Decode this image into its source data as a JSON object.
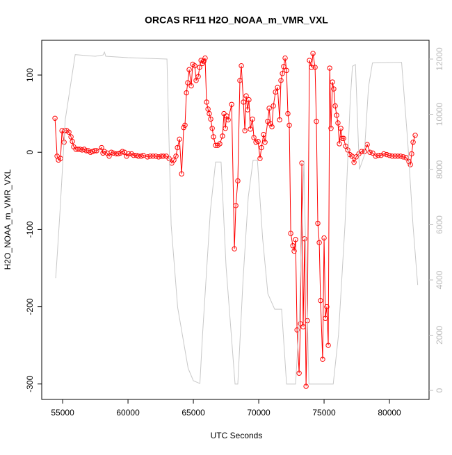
{
  "chart_data": {
    "type": "line",
    "title": "ORCAS RF11 H2O_NOAA_m_VMR_VXL",
    "xlabel": "UTC Seconds",
    "ylabel": "H2O_NOAA_m_VMR_VXL",
    "xlim": [
      53400,
      83030
    ],
    "ylim": [
      -320,
      145
    ],
    "y2lim": [
      -327,
      12680
    ],
    "xticks": [
      55000,
      60000,
      65000,
      70000,
      75000,
      80000
    ],
    "yticks": [
      -300,
      -200,
      -100,
      0,
      100
    ],
    "y2ticks": [
      0,
      2000,
      4000,
      6000,
      8000,
      10000,
      12000
    ],
    "series": [
      {
        "color": "#ff0000",
        "markers": true,
        "x": [
          54415,
          54575,
          54680,
          54840,
          54950,
          55110,
          55160,
          55320,
          55480,
          55640,
          55745,
          55850,
          56010,
          56170,
          56330,
          56490,
          56650,
          56810,
          56970,
          57130,
          57290,
          57450,
          57600,
          57980,
          58085,
          58190,
          58400,
          58560,
          58720,
          58880,
          59100,
          59250,
          59410,
          59570,
          59730,
          59890,
          60050,
          60270,
          60430,
          60640,
          60800,
          61010,
          61170,
          61490,
          61700,
          61910,
          62130,
          62340,
          62550,
          62710,
          62930,
          63140,
          63350,
          63510,
          63670,
          63780,
          63940,
          64100,
          64260,
          64360,
          64470,
          64570,
          64680,
          64840,
          64950,
          65110,
          65210,
          65370,
          65480,
          65590,
          65690,
          65800,
          65900,
          66010,
          66120,
          66220,
          66330,
          66440,
          66540,
          66700,
          66860,
          67020,
          67230,
          67340,
          67450,
          67550,
          67660,
          67930,
          68140,
          68250,
          68400,
          68560,
          68670,
          68830,
          68940,
          69040,
          69150,
          69250,
          69360,
          69520,
          69630,
          69790,
          69950,
          70100,
          70210,
          70370,
          70480,
          70690,
          70800,
          70900,
          71010,
          71120,
          71280,
          71440,
          71600,
          71700,
          71810,
          71910,
          72020,
          72130,
          72230,
          72340,
          72450,
          72610,
          72710,
          72820,
          72930,
          73090,
          73190,
          73300,
          73400,
          73510,
          73620,
          73720,
          73880,
          74040,
          74150,
          74310,
          74410,
          74520,
          74630,
          74730,
          74890,
          75000,
          75100,
          75210,
          75320,
          75430,
          75530,
          75640,
          75740,
          75850,
          75960,
          76060,
          76170,
          76280,
          76380,
          76490,
          76650,
          76810,
          76970,
          77130,
          77290,
          77450,
          77660,
          77870,
          78090,
          78300,
          78510,
          78720,
          78940,
          79150,
          79360,
          79570,
          79790,
          80000,
          80210,
          80430,
          80640,
          80850,
          81060,
          81280,
          81490,
          81600,
          81700,
          81810,
          81970
        ],
        "values": [
          44,
          -5,
          -10,
          -8,
          28,
          13,
          28,
          28,
          26,
          20,
          14,
          7,
          4,
          4,
          4,
          3,
          4,
          2,
          2,
          0,
          1,
          2,
          2,
          6,
          -1,
          1,
          -1,
          -5,
          0,
          -1,
          -2,
          -2,
          -1,
          1,
          0,
          -5,
          -2,
          -2,
          -4,
          -4,
          -5,
          -5,
          -4,
          -6,
          -5,
          -5,
          -5,
          -6,
          -5,
          -5,
          -5,
          -8,
          -14,
          -10,
          -5,
          6,
          17,
          -28,
          32,
          35,
          77,
          90,
          107,
          86,
          114,
          112,
          93,
          98,
          110,
          119,
          115,
          118,
          122,
          65,
          56,
          50,
          43,
          31,
          20,
          9,
          9,
          11,
          21,
          50,
          31,
          47,
          42,
          62,
          -125,
          -69,
          -37,
          93,
          112,
          65,
          28,
          73,
          55,
          68,
          30,
          43,
          19,
          13,
          14,
          -8,
          6,
          23,
          13,
          40,
          57,
          37,
          33,
          60,
          78,
          84,
          42,
          93,
          102,
          111,
          122,
          106,
          50,
          35,
          -105,
          -121,
          -128,
          -113,
          -230,
          -286,
          -222,
          -14,
          -226,
          -112,
          -303,
          -218,
          119,
          110,
          128,
          110,
          40,
          -92,
          -117,
          -192,
          -268,
          -111,
          -215,
          -200,
          -250,
          109,
          31,
          91,
          82,
          60,
          48,
          38,
          11,
          31,
          18,
          18,
          8,
          3,
          -3,
          -5,
          -13,
          -6,
          -2,
          1,
          1,
          10,
          0,
          -1,
          -5,
          -4,
          -4,
          -2,
          -3,
          -4,
          -5,
          -5,
          -5,
          -5,
          -6,
          -7,
          -12,
          -16,
          -2,
          13,
          22
        ]
      },
      {
        "color": "#c8c8c8",
        "axis": "y2",
        "x": [
          54470,
          54600,
          54800,
          55200,
          55960,
          57500,
          58100,
          58200,
          58300,
          60000,
          62980,
          63300,
          63800,
          64600,
          65000,
          65500,
          65700,
          66300,
          66700,
          67120,
          67500,
          68190,
          68400,
          68800,
          69200,
          69570,
          69900,
          70300,
          70700,
          71220,
          71750,
          72130,
          72820,
          73100,
          73460,
          73550,
          73840,
          74960,
          75700,
          76100,
          76600,
          77000,
          77170,
          77400,
          77700,
          78070,
          78400,
          78700,
          80930,
          81400,
          81800,
          82160
        ],
        "values": [
          4070,
          5000,
          6500,
          9800,
          12160,
          12100,
          12150,
          12250,
          12100,
          12050,
          12000,
          6000,
          3000,
          800,
          350,
          250,
          2000,
          6500,
          8270,
          8270,
          4500,
          230,
          230,
          4000,
          7000,
          8340,
          8340,
          5500,
          3500,
          2940,
          2940,
          230,
          230,
          2500,
          8320,
          6000,
          230,
          230,
          230,
          2000,
          6000,
          10500,
          11740,
          11800,
          8000,
          8500,
          11000,
          11860,
          11880,
          9000,
          6000,
          3820
        ]
      }
    ]
  }
}
